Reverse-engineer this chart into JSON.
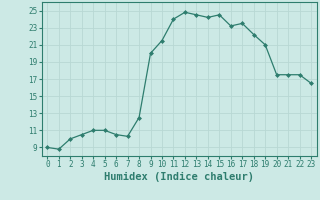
{
  "xlabel": "Humidex (Indice chaleur)",
  "ylabel": "",
  "x_values": [
    0,
    1,
    2,
    3,
    4,
    5,
    6,
    7,
    8,
    9,
    10,
    11,
    12,
    13,
    14,
    15,
    16,
    17,
    18,
    19,
    20,
    21,
    22,
    23
  ],
  "y_values": [
    9,
    8.8,
    10,
    10.5,
    11,
    11,
    10.5,
    10.3,
    12.5,
    20,
    21.5,
    24,
    24.8,
    24.5,
    24.2,
    24.5,
    23.2,
    23.5,
    22.2,
    21,
    17.5,
    17.5,
    17.5,
    16.5
  ],
  "ylim": [
    8,
    26
  ],
  "yticks": [
    9,
    11,
    13,
    15,
    17,
    19,
    21,
    23,
    25
  ],
  "xticks": [
    0,
    1,
    2,
    3,
    4,
    5,
    6,
    7,
    8,
    9,
    10,
    11,
    12,
    13,
    14,
    15,
    16,
    17,
    18,
    19,
    20,
    21,
    22,
    23
  ],
  "line_color": "#2e7d6e",
  "marker": "D",
  "marker_size": 2,
  "bg_color": "#cce9e5",
  "grid_color": "#b8d8d4",
  "tick_label_fontsize": 5.5,
  "xlabel_fontsize": 7.5,
  "linewidth": 0.9
}
